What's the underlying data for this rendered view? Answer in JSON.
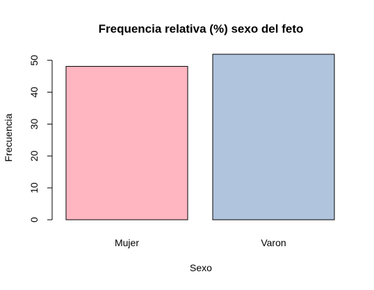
{
  "chart_data": {
    "type": "bar",
    "title": "Frequencia relativa (%) sexo del feto",
    "xlabel": "Sexo",
    "ylabel": "Frecuencia",
    "categories": [
      "Mujer",
      "Varon"
    ],
    "values": [
      48.1,
      51.9
    ],
    "colors": [
      "#FFB6C1",
      "#B0C4DE"
    ],
    "yticks": [
      0,
      10,
      20,
      30,
      40,
      50
    ],
    "ylim": [
      0,
      51.9
    ],
    "grid": false
  }
}
